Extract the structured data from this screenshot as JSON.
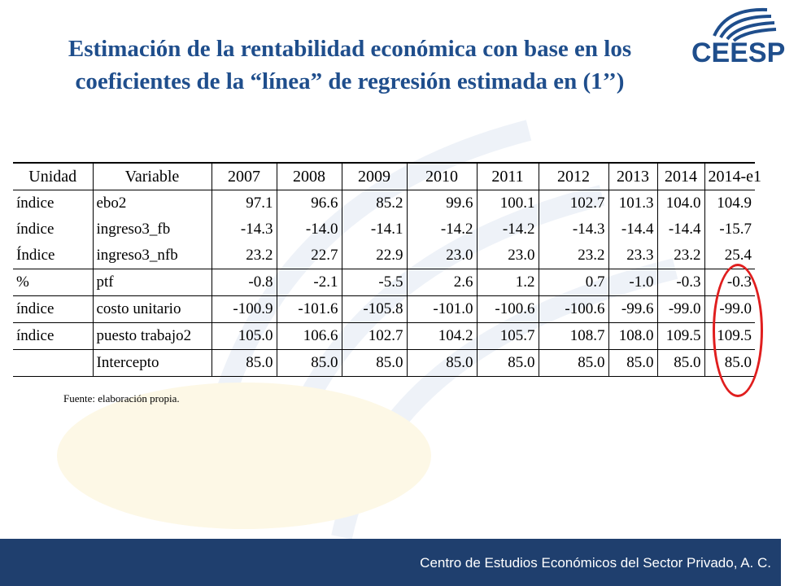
{
  "title": "Estimación de la rentabilidad económica con base en los coeficientes de la “línea” de regresión estimada en (1’’)",
  "logo": {
    "text": "CEESP",
    "color": "#1f4e8c"
  },
  "table": {
    "headers": [
      "Unidad",
      "Variable",
      "2007",
      "2008",
      "2009",
      "2010",
      "2011",
      "2012",
      "2013",
      "2014",
      "2014-e1"
    ],
    "rows": [
      [
        "índice",
        "ebo2",
        "97.1",
        "96.6",
        "85.2",
        "99.6",
        "100.1",
        "102.7",
        "101.3",
        "104.0",
        "104.9"
      ],
      [
        "índice",
        "ingreso3_fb",
        "-14.3",
        "-14.0",
        "-14.1",
        "-14.2",
        "-14.2",
        "-14.3",
        "-14.4",
        "-14.4",
        "-15.7"
      ],
      [
        "Índice",
        "ingreso3_nfb",
        "23.2",
        "22.7",
        "22.9",
        "23.0",
        "23.0",
        "23.2",
        "23.3",
        "23.2",
        "25.4"
      ],
      [
        "%",
        "ptf",
        "-0.8",
        "-2.1",
        "-5.5",
        "2.6",
        "1.2",
        "0.7",
        "-1.0",
        "-0.3",
        "-0.3"
      ],
      [
        "índice",
        "costo unitario",
        "-100.9",
        "-101.6",
        "-105.8",
        "-101.0",
        "-100.6",
        "-100.6",
        "-99.6",
        "-99.0",
        "-99.0"
      ],
      [
        "índice",
        "puesto trabajo2",
        "105.0",
        "106.6",
        "102.7",
        "104.2",
        "105.7",
        "108.7",
        "108.0",
        "109.5",
        "109.5"
      ],
      [
        "",
        "Intercepto",
        "85.0",
        "85.0",
        "85.0",
        "85.0",
        "85.0",
        "85.0",
        "85.0",
        "85.0",
        "85.0"
      ]
    ]
  },
  "source_note": "Fuente: elaboración propia.",
  "footer": "Centro de Estudios Económicos del Sector Privado, A. C.",
  "colors": {
    "title": "#1f4e8c",
    "footer_bg": "#1f3f6e",
    "highlight": "#e01e1e"
  }
}
